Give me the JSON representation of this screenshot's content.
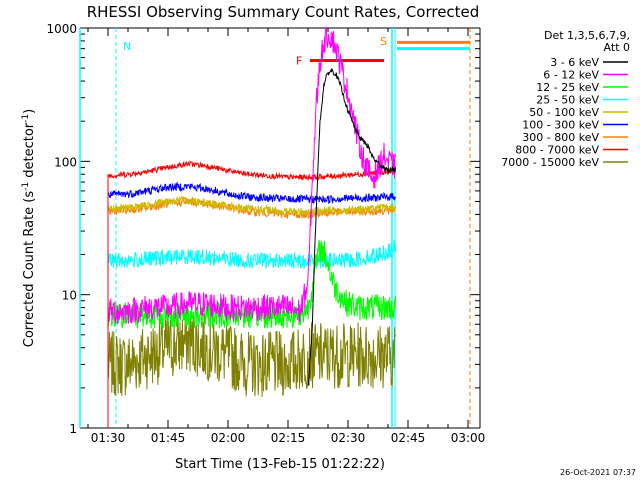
{
  "chart_data": {
    "type": "line",
    "title": "RHESSI Observing Summary Count Rates, Corrected",
    "xlabel": "Start Time (13-Feb-15 01:22:22)",
    "ylabel": "Corrected Count Rate (s⁻¹ detector⁻¹)",
    "ylabel_main": "Corrected Count Rate (s",
    "ylabel_sup1": "-1",
    "ylabel_mid": " detector",
    "ylabel_sup2": "-1",
    "ylabel_end": ")",
    "y_scale": "log",
    "ylim": [
      1,
      1000
    ],
    "xlim": [
      "01:23",
      "03:03"
    ],
    "x_ticks": [
      "01:30",
      "01:45",
      "02:00",
      "02:15",
      "02:30",
      "02:45",
      "03:00"
    ],
    "x_tick_values": [
      90,
      105,
      120,
      135,
      150,
      165,
      180
    ],
    "y_ticks": [
      "1",
      "10",
      "100",
      "1000"
    ],
    "y_tick_values": [
      1,
      10,
      100,
      1000
    ],
    "legend_position": "right",
    "legend_header": [
      "Det 1,3,5,6,7,9,",
      "Att 0"
    ],
    "timestamp": "26-Oct-2021 07:37",
    "annotations": {
      "N": {
        "label": "N",
        "color": "#00ffff",
        "start": 83,
        "end": 92
      },
      "S": {
        "label": "S",
        "color": "#ff8000",
        "start": 161,
        "end": 182
      },
      "F": {
        "label": "F",
        "color": "#ff0000",
        "start": 140.5,
        "end": 159,
        "level": 570
      }
    },
    "series": [
      {
        "name": "3 - 6 keV",
        "color": "#000000",
        "x": [
          140,
          141,
          142,
          143,
          144,
          145,
          146,
          147,
          148,
          149,
          150,
          151,
          152,
          153,
          154,
          155,
          156,
          157,
          158,
          159,
          160,
          161,
          162
        ],
        "y": [
          2,
          5,
          40,
          200,
          380,
          460,
          480,
          450,
          380,
          300,
          240,
          200,
          170,
          150,
          140,
          130,
          110,
          100,
          95,
          90,
          85,
          88,
          85
        ]
      },
      {
        "name": "6 - 12 keV",
        "color": "#ff00ff",
        "x": [
          90,
          95,
          100,
          105,
          110,
          115,
          120,
          125,
          130,
          135,
          138,
          140,
          141,
          142,
          143,
          144,
          145,
          146,
          147,
          148,
          149,
          150,
          151,
          152,
          153,
          154,
          155,
          156,
          157,
          158,
          159,
          160,
          161,
          162
        ],
        "y": [
          7.5,
          7.5,
          8,
          8,
          8.5,
          8.5,
          8,
          8,
          8,
          8,
          7.5,
          12,
          60,
          250,
          550,
          800,
          900,
          850,
          700,
          550,
          420,
          320,
          240,
          170,
          130,
          100,
          85,
          75,
          80,
          95,
          110,
          100,
          95,
          90
        ]
      },
      {
        "name": "12 - 25 keV",
        "color": "#00ff00",
        "x": [
          90,
          95,
          100,
          105,
          110,
          115,
          120,
          125,
          130,
          135,
          138,
          140,
          141,
          142,
          143,
          144,
          145,
          146,
          147,
          148,
          149,
          150,
          151,
          152,
          154,
          156,
          158,
          160,
          162
        ],
        "y": [
          7,
          7,
          7,
          7,
          7,
          7,
          7,
          7,
          7,
          7,
          7,
          8,
          11,
          17,
          22,
          21,
          17,
          13,
          11,
          10,
          9,
          8.5,
          8.5,
          8,
          8,
          8,
          8,
          8,
          8
        ]
      },
      {
        "name": "25 - 50 keV",
        "color": "#00ffff",
        "x": [
          90,
          95,
          100,
          105,
          110,
          115,
          120,
          125,
          130,
          135,
          140,
          145,
          150,
          155,
          160,
          162
        ],
        "y": [
          18,
          18,
          18.5,
          19,
          19.5,
          19,
          18.5,
          18,
          18,
          18,
          18,
          18,
          18,
          19,
          21,
          23
        ]
      },
      {
        "name": "50 - 100 keV",
        "color": "#ccbb00",
        "x": [
          90,
          95,
          100,
          105,
          110,
          115,
          120,
          125,
          130,
          135,
          140,
          145,
          150,
          155,
          160,
          162
        ],
        "y": [
          44,
          45,
          47,
          50,
          51,
          49,
          46,
          44,
          43,
          42,
          42,
          43,
          43,
          44,
          45,
          45
        ]
      },
      {
        "name": "100 - 300 keV",
        "color": "#0000ff",
        "x": [
          90,
          95,
          100,
          105,
          110,
          115,
          120,
          125,
          130,
          135,
          140,
          145,
          150,
          155,
          160,
          162
        ],
        "y": [
          56,
          57,
          60,
          64,
          65,
          62,
          57,
          54,
          53,
          52,
          52,
          52,
          53,
          53,
          54,
          55
        ]
      },
      {
        "name": "300 - 800 keV",
        "color": "#ff8000",
        "x": [
          90,
          95,
          100,
          105,
          110,
          115,
          120,
          125,
          130,
          135,
          140,
          145,
          150,
          155,
          160,
          162
        ],
        "y": [
          42,
          43,
          45,
          48,
          50,
          48,
          45,
          42,
          41,
          40,
          40,
          41,
          42,
          42,
          43,
          44
        ]
      },
      {
        "name": "800 - 7000 keV",
        "color": "#ff0000",
        "x": [
          90,
          95,
          100,
          105,
          110,
          115,
          120,
          125,
          130,
          135,
          140,
          145,
          150,
          155,
          160,
          162
        ],
        "y": [
          78,
          80,
          84,
          90,
          96,
          92,
          85,
          80,
          78,
          76,
          76,
          77,
          79,
          81,
          83,
          84
        ]
      },
      {
        "name": "7000 - 15000 keV",
        "color": "#808000",
        "x": [
          90,
          95,
          100,
          105,
          110,
          115,
          120,
          125,
          130,
          135,
          140,
          145,
          150,
          155,
          160,
          162
        ],
        "y": [
          3,
          3,
          3.5,
          4,
          4.5,
          4,
          3.5,
          3,
          3,
          3,
          3.5,
          3.5,
          3.5,
          3.5,
          3.5,
          3.5
        ]
      }
    ]
  }
}
